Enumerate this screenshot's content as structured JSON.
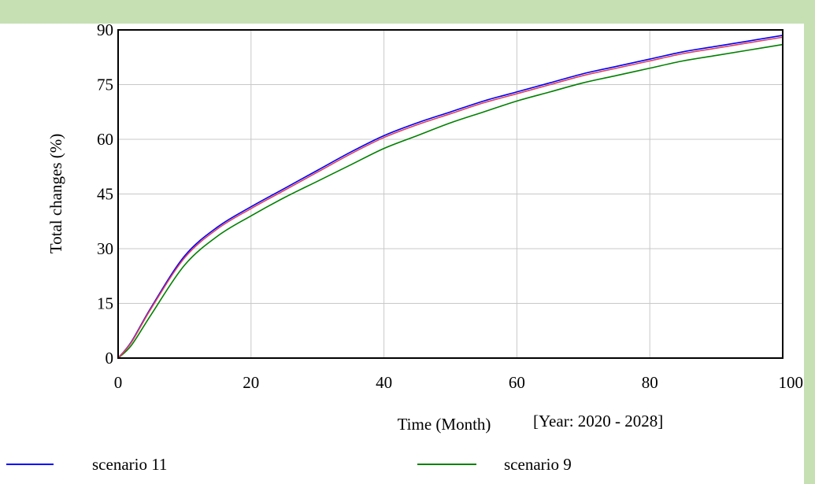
{
  "colors": {
    "band": "#c6e0b4",
    "scenario_11": "#0000ff",
    "scenario_9": "#008000",
    "middle_series": "#e0405a",
    "grid": "#c8c8c8"
  },
  "chart_data": {
    "type": "line",
    "title": "",
    "xlabel": "Time (Month)",
    "xlabel_note": "[Year: 2020 - 2028]",
    "ylabel": "Total changes (%)",
    "xlim": [
      0,
      100
    ],
    "ylim": [
      0,
      90
    ],
    "xticks": [
      "0",
      "20",
      "40",
      "60",
      "80",
      "100"
    ],
    "yticks": [
      "0",
      "15",
      "30",
      "45",
      "60",
      "75",
      "90"
    ],
    "grid": true,
    "legend_position": "bottom",
    "x": [
      0,
      2,
      5,
      10,
      15,
      20,
      25,
      30,
      35,
      40,
      45,
      50,
      55,
      60,
      65,
      70,
      75,
      80,
      85,
      90,
      95,
      100
    ],
    "series": [
      {
        "name": "scenario 11",
        "color": "#0000ff",
        "values": [
          0,
          4.5,
          14,
          28,
          36,
          41.5,
          46.5,
          51.5,
          56.5,
          61,
          64.5,
          67.5,
          70.5,
          73,
          75.5,
          78,
          80,
          82,
          84,
          85.5,
          87,
          88.5
        ]
      },
      {
        "name": "",
        "color": "#e0405a",
        "values": [
          0,
          4.3,
          13.7,
          27.5,
          35.5,
          41,
          46,
          51,
          56,
          60.5,
          64,
          67,
          70,
          72.5,
          75,
          77.5,
          79.5,
          81.5,
          83.5,
          85,
          86.5,
          88
        ]
      },
      {
        "name": "scenario 9",
        "color": "#008000",
        "values": [
          0,
          3.5,
          12,
          25.5,
          33.5,
          39,
          44,
          48.5,
          53,
          57.5,
          61,
          64.5,
          67.5,
          70.5,
          73,
          75.5,
          77.5,
          79.5,
          81.5,
          83,
          84.5,
          86
        ]
      }
    ]
  }
}
